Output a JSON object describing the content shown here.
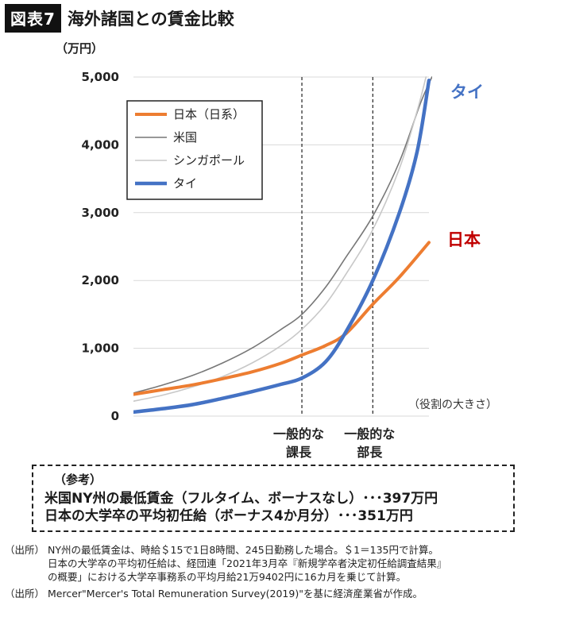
{
  "header": {
    "fig_label": "図表7",
    "title": "海外諸国との賃金比較"
  },
  "chart_data": {
    "type": "line",
    "unit_label": "（万円）",
    "y_ticks": [
      "5,000",
      "4,000",
      "3,000",
      "2,000",
      "1,000",
      "0"
    ],
    "ylim": [
      0,
      5000
    ],
    "x_note": "（役割の大きさ）",
    "x_markers": [
      {
        "label_line1": "一般的な",
        "label_line2": "課長",
        "x": 0.57
      },
      {
        "label_line1": "一般的な",
        "label_line2": "部長",
        "x": 0.81
      }
    ],
    "grid": true,
    "legend_placement": "top-left",
    "series": [
      {
        "name": "日本（日系）",
        "color": "#ed7d31",
        "width": 4,
        "end_label": "日本",
        "end_label_color": "#c00000",
        "points": [
          [
            0,
            320
          ],
          [
            0.1,
            390
          ],
          [
            0.2,
            460
          ],
          [
            0.3,
            550
          ],
          [
            0.4,
            650
          ],
          [
            0.5,
            780
          ],
          [
            0.57,
            900
          ],
          [
            0.65,
            1040
          ],
          [
            0.72,
            1220
          ],
          [
            0.81,
            1650
          ],
          [
            0.9,
            2050
          ],
          [
            1.0,
            2560
          ]
        ]
      },
      {
        "name": "米国",
        "color": "#777777",
        "width": 1.6,
        "points": [
          [
            0,
            340
          ],
          [
            0.1,
            460
          ],
          [
            0.2,
            600
          ],
          [
            0.3,
            780
          ],
          [
            0.4,
            1000
          ],
          [
            0.5,
            1280
          ],
          [
            0.57,
            1500
          ],
          [
            0.65,
            1900
          ],
          [
            0.72,
            2350
          ],
          [
            0.81,
            2950
          ],
          [
            0.9,
            3750
          ],
          [
            0.97,
            4600
          ],
          [
            1.01,
            5000
          ]
        ]
      },
      {
        "name": "シンガポール",
        "color": "#c8c8c8",
        "width": 1.6,
        "points": [
          [
            0,
            220
          ],
          [
            0.1,
            310
          ],
          [
            0.2,
            430
          ],
          [
            0.3,
            580
          ],
          [
            0.4,
            780
          ],
          [
            0.5,
            1040
          ],
          [
            0.57,
            1280
          ],
          [
            0.65,
            1650
          ],
          [
            0.72,
            2100
          ],
          [
            0.81,
            2750
          ],
          [
            0.9,
            3650
          ],
          [
            0.96,
            4500
          ],
          [
            0.99,
            5000
          ]
        ]
      },
      {
        "name": "タイ",
        "color": "#4472c4",
        "width": 4.5,
        "end_label": "タイ",
        "end_label_color": "#4472c4",
        "points": [
          [
            0,
            60
          ],
          [
            0.1,
            110
          ],
          [
            0.2,
            170
          ],
          [
            0.3,
            260
          ],
          [
            0.4,
            360
          ],
          [
            0.5,
            470
          ],
          [
            0.57,
            560
          ],
          [
            0.65,
            800
          ],
          [
            0.72,
            1250
          ],
          [
            0.81,
            2000
          ],
          [
            0.9,
            3000
          ],
          [
            0.96,
            3900
          ],
          [
            1.0,
            4950
          ]
        ]
      }
    ]
  },
  "reference": {
    "heading": "（参考）",
    "line1": "米国NY州の最低賃金（フルタイム、ボーナスなし）･･･397万円",
    "line2": "日本の大学卒の平均初任給（ボーナス4か月分）･･･351万円"
  },
  "sources": [
    {
      "tag": "（出所）",
      "lines": [
        "NY州の最低賃金は、時給＄15で1日8時間、245日勤務した場合。＄1＝135円で計算。",
        "日本の大学卒の平均初任給は、経団連「2021年3月卒『新規学卒者決定初任給調査結果』",
        "の概要」における大学卒事務系の平均月給21万9402円に16カ月を乗じて計算。"
      ]
    },
    {
      "tag": "（出所）",
      "lines": [
        "Mercer\"Mercer's Total Remuneration Survey(2019)\"を基に経済産業省が作成。"
      ]
    }
  ]
}
